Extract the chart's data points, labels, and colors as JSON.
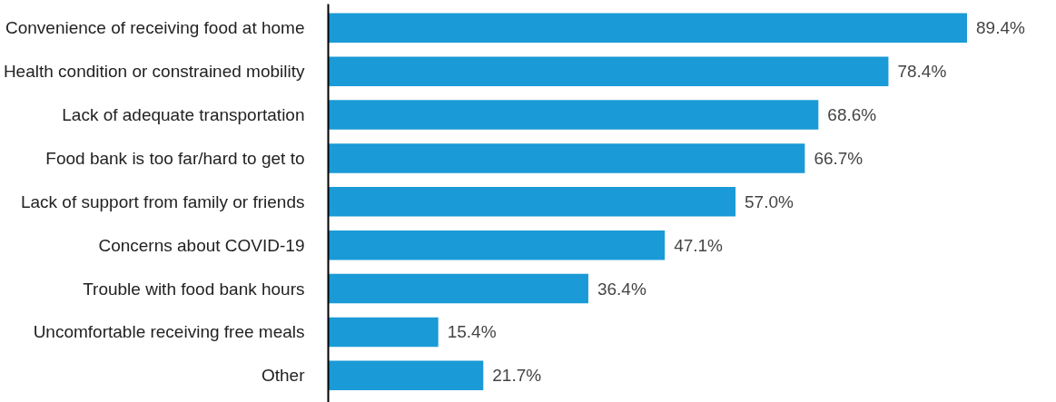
{
  "chart_data": {
    "type": "bar",
    "orientation": "horizontal",
    "categories": [
      "Convenience of receiving food at home",
      "Health condition or constrained mobility",
      "Lack of adequate transportation",
      "Food bank is too far/hard to get to",
      "Lack of support from family or friends",
      "Concerns about COVID-19",
      "Trouble with food bank hours",
      "Uncomfortable receiving free meals",
      "Other"
    ],
    "values": [
      89.4,
      78.4,
      68.6,
      66.7,
      57.0,
      47.1,
      36.4,
      15.4,
      21.7
    ],
    "value_labels": [
      "89.4%",
      "78.4%",
      "68.6%",
      "66.7%",
      "57.0%",
      "47.1%",
      "36.4%",
      "15.4%",
      "21.7%"
    ],
    "color": "#1a9ad6",
    "grid": false
  }
}
